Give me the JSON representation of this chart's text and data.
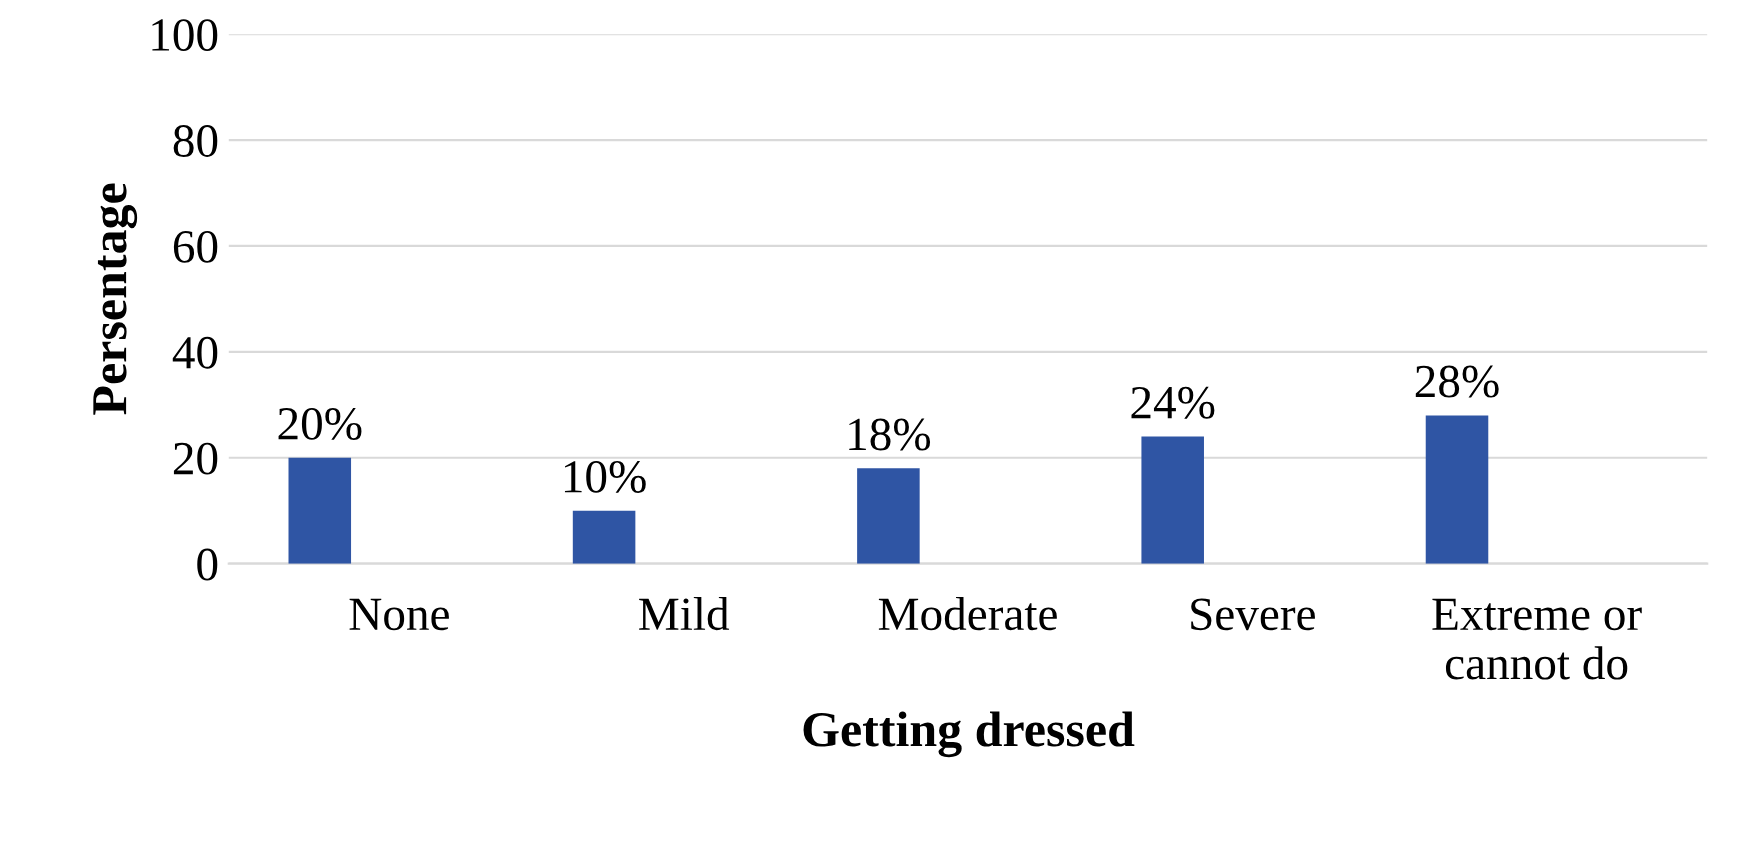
{
  "chart_data": {
    "type": "bar",
    "xlabel": "Getting dressed",
    "ylabel": "Persentage",
    "categories": [
      "None",
      "Mild",
      "Moderate",
      "Severe",
      "Extreme or\ncannot do"
    ],
    "values": [
      20,
      10,
      18,
      24,
      28
    ],
    "value_labels": [
      "20%",
      "10%",
      "18%",
      "24%",
      "28%"
    ],
    "color": "#2f55a4",
    "ylim": [
      0,
      100
    ],
    "yticks": [
      0,
      20,
      40,
      60,
      80,
      100
    ],
    "grid": "y"
  }
}
